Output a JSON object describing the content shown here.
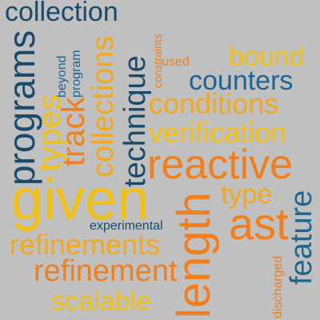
{
  "colors": {
    "background": "#c0c0c0",
    "navy": "#1a4a6a",
    "teal": "#1f6591",
    "orange": "#f07f1c",
    "gold": "#f4a81b",
    "yellow": "#f2c014"
  },
  "words": {
    "collection": "collection",
    "constraints": "constraints",
    "used": "used",
    "bound": "bound",
    "counters": "counters",
    "beyond": "beyond",
    "program": "program",
    "programs": "programs",
    "types": "types",
    "track": "track",
    "collections": "collections",
    "technique": "technique",
    "conditions": "conditions",
    "verification": "verification",
    "reactive": "reactive",
    "given": "given",
    "type": "type",
    "feature": "feature",
    "experimental": "experimental",
    "ast": "ast",
    "length": "length",
    "refinements": "refinements",
    "refinement": "refinement",
    "scalable": "scalable",
    "discharged": "discharged"
  }
}
